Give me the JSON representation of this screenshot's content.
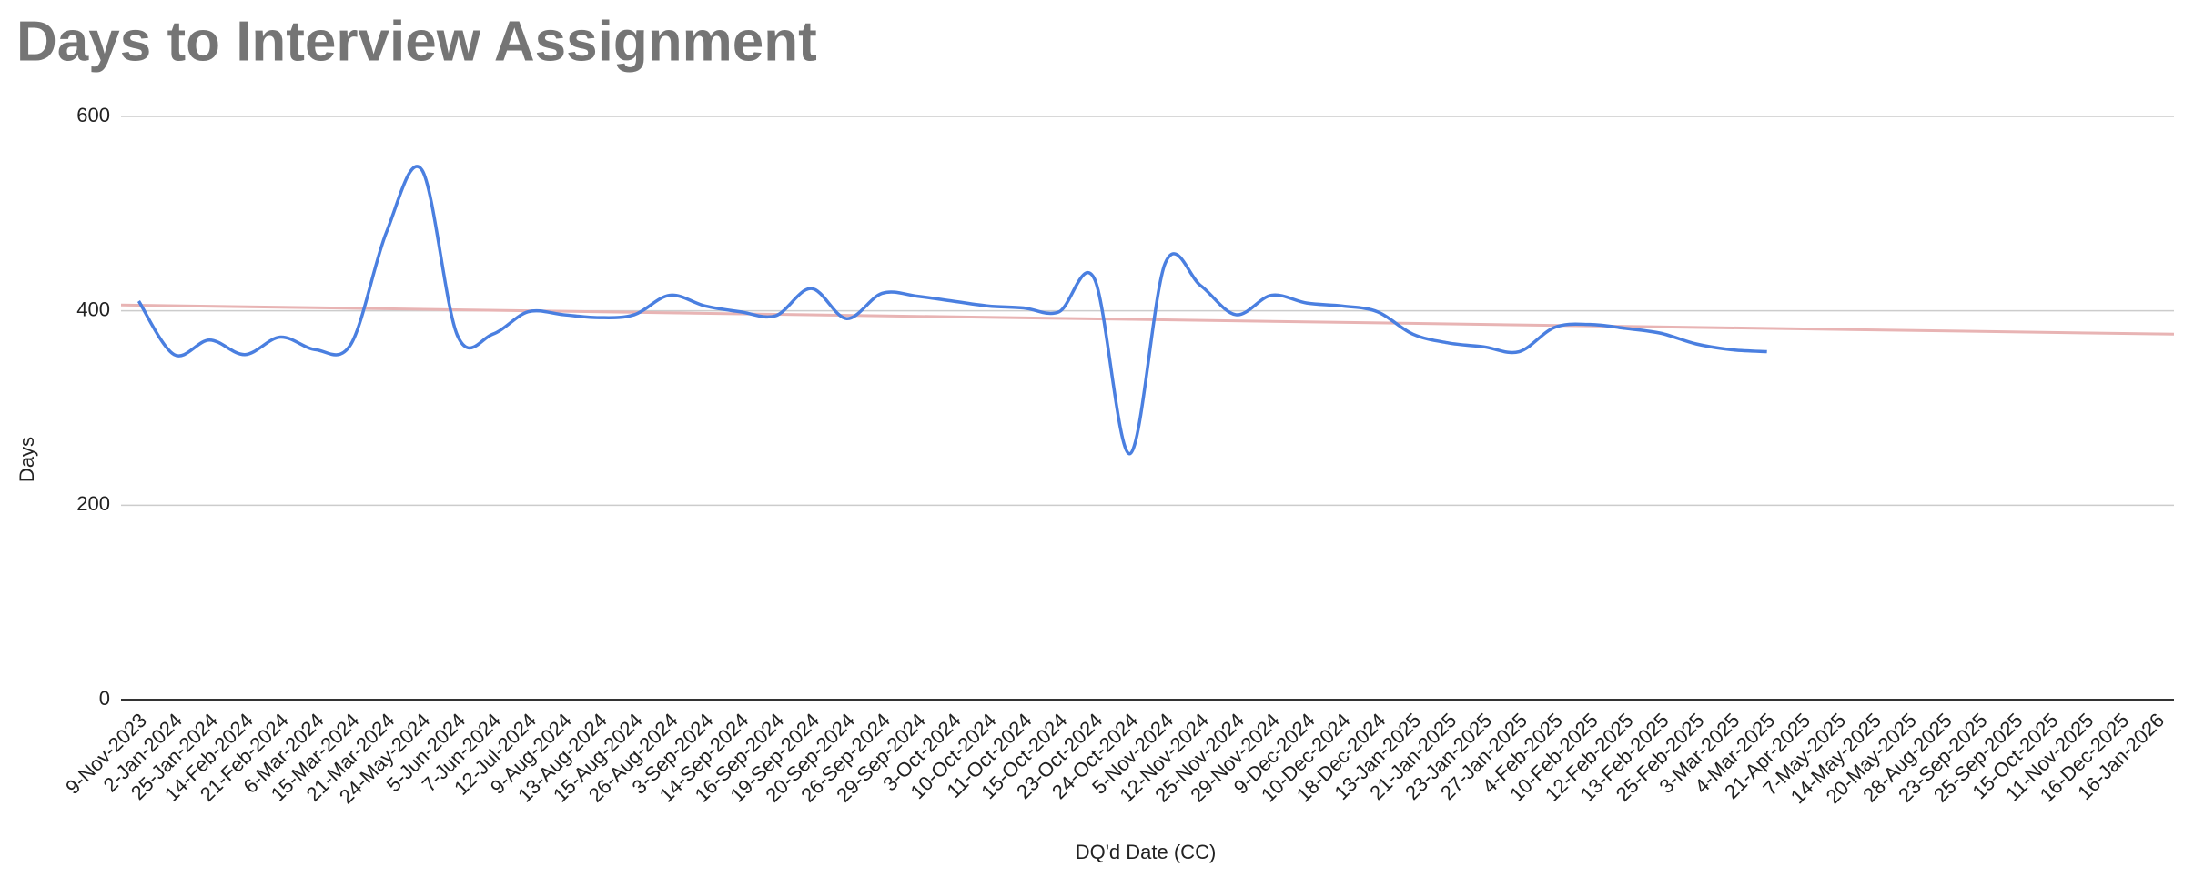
{
  "chart_data": {
    "type": "line",
    "title": "Days to Interview Assignment",
    "x_label": "DQ'd Date (CC)",
    "y_label": "Days",
    "categories": [
      "9-Nov-2023",
      "2-Jan-2024",
      "25-Jan-2024",
      "14-Feb-2024",
      "21-Feb-2024",
      "6-Mar-2024",
      "15-Mar-2024",
      "21-Mar-2024",
      "24-May-2024",
      "5-Jun-2024",
      "7-Jun-2024",
      "12-Jul-2024",
      "9-Aug-2024",
      "13-Aug-2024",
      "15-Aug-2024",
      "26-Aug-2024",
      "3-Sep-2024",
      "14-Sep-2024",
      "16-Sep-2024",
      "19-Sep-2024",
      "20-Sep-2024",
      "26-Sep-2024",
      "29-Sep-2024",
      "3-Oct-2024",
      "10-Oct-2024",
      "11-Oct-2024",
      "15-Oct-2024",
      "23-Oct-2024",
      "24-Oct-2024",
      "5-Nov-2024",
      "12-Nov-2024",
      "25-Nov-2024",
      "29-Nov-2024",
      "9-Dec-2024",
      "10-Dec-2024",
      "18-Dec-2024",
      "13-Jan-2025",
      "21-Jan-2025",
      "23-Jan-2025",
      "27-Jan-2025",
      "4-Feb-2025",
      "10-Feb-2025",
      "12-Feb-2025",
      "13-Feb-2025",
      "25-Feb-2025",
      "3-Mar-2025",
      "4-Mar-2025",
      "21-Apr-2025",
      "7-May-2025",
      "14-May-2025",
      "20-May-2025",
      "28-Aug-2025",
      "23-Sep-2025",
      "25-Sep-2025",
      "15-Oct-2025",
      "11-Nov-2025",
      "16-Dec-2025",
      "16-Jan-2026"
    ],
    "values": [
      410,
      355,
      370,
      355,
      373,
      360,
      366,
      481,
      545,
      375,
      376,
      399,
      396,
      393,
      396,
      416,
      405,
      399,
      395,
      423,
      392,
      418,
      415,
      410,
      405,
      403,
      399,
      433,
      253,
      449,
      426,
      396,
      416,
      408,
      405,
      399,
      376,
      367,
      363,
      358,
      383,
      386,
      382,
      377,
      366,
      360,
      358,
      null,
      null,
      null,
      null,
      null,
      null,
      null,
      null,
      null,
      null,
      null
    ],
    "color": "#4a7fe0",
    "trendline": {
      "color": "#e8b4b4",
      "values": [
        406,
        376
      ]
    },
    "ylim": [
      0,
      600
    ],
    "yticks": [
      0,
      200,
      400,
      600
    ],
    "grid": true
  }
}
